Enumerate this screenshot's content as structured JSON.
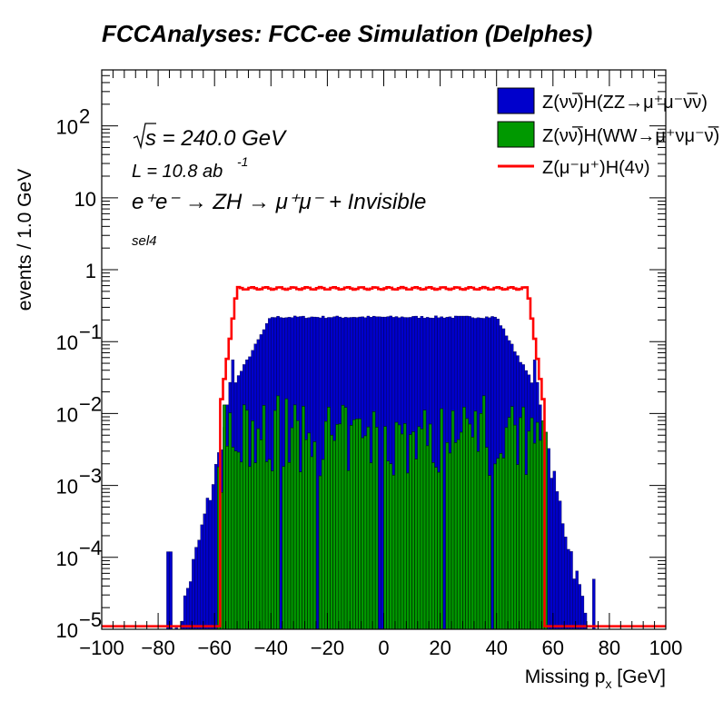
{
  "chart_data": {
    "type": "bar",
    "title": "FCCAnalyses: FCC-ee Simulation (Delphes)",
    "xlabel": "Missing p_x [GeV]",
    "ylabel": "events / 1.0 GeV",
    "xlim": [
      -100,
      100
    ],
    "ylim": [
      1e-05,
      600
    ],
    "y_scale": "log",
    "x_ticks": [
      "−100",
      "−80",
      "−60",
      "−40",
      "−20",
      "0",
      "20",
      "40",
      "60",
      "80",
      "100"
    ],
    "y_ticks": [
      {
        "base": "10",
        "exp": "−5"
      },
      {
        "base": "10",
        "exp": "−4"
      },
      {
        "base": "10",
        "exp": "−3"
      },
      {
        "base": "10",
        "exp": "−2"
      },
      {
        "base": "10",
        "exp": "−1"
      },
      {
        "base": "1",
        "exp": ""
      },
      {
        "base": "10",
        "exp": ""
      },
      {
        "base": "10",
        "exp": "2"
      }
    ],
    "annotations": {
      "sqrt_s": "s = 240.0 GeV",
      "lumi": "L = 10.8 ab",
      "lumi_exp": "-1",
      "process": "e⁺e⁻ → ZH → μ⁺μ⁻ + Invisible",
      "selection": "sel4"
    },
    "legend_position": "top-right",
    "series": [
      {
        "name": "Z(νν̅)H(ZZ→μ⁺μ⁻ν̅ν)",
        "style": "filled",
        "color": "#0000cc",
        "plateau": 0.22,
        "shoulder_edges": [
          -55,
          55
        ],
        "tail_edges": [
          -73,
          73
        ]
      },
      {
        "name": "Z(νν̅)H(WW→μ⁺νμ⁻ν̅)",
        "style": "filled",
        "color": "#009900",
        "typical": 0.003,
        "max": 0.02,
        "edges": [
          -59,
          58
        ]
      },
      {
        "name": "Z(μ⁻μ⁺)H(4ν)",
        "style": "line",
        "color": "#ff0000",
        "plateau": 0.55,
        "edges": [
          -58,
          57
        ]
      }
    ]
  }
}
